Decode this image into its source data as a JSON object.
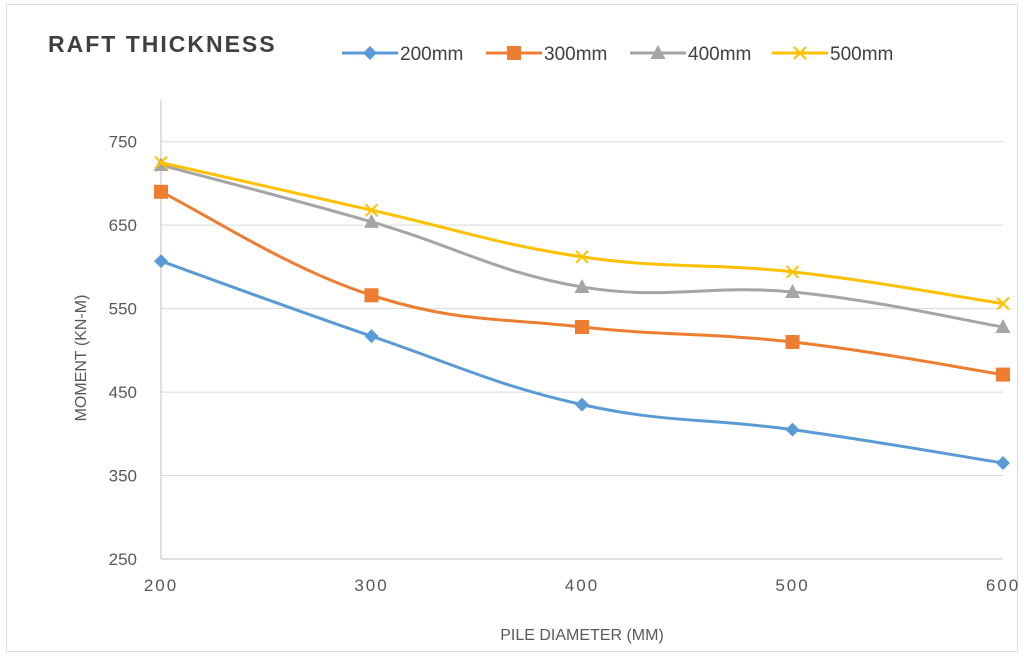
{
  "chart_data": {
    "type": "line",
    "title": "RAFT THICKNESS",
    "xlabel": "PILE DIAMETER (MM)",
    "ylabel": "MOMENT (KN-M)",
    "x": [
      200,
      300,
      400,
      500,
      600
    ],
    "ylim": [
      250,
      800
    ],
    "yticks": [
      250,
      350,
      450,
      550,
      650,
      750
    ],
    "grid": "horizontal",
    "legend_position": "top",
    "series": [
      {
        "name": "200mm",
        "color": "#5b9bd5",
        "marker": "diamond",
        "values": [
          607,
          517,
          435,
          405,
          365
        ]
      },
      {
        "name": "300mm",
        "color": "#ed7d31",
        "marker": "square",
        "values": [
          690,
          566,
          528,
          510,
          471
        ]
      },
      {
        "name": "400mm",
        "color": "#a5a5a5",
        "marker": "triangle",
        "values": [
          722,
          654,
          576,
          570,
          528
        ]
      },
      {
        "name": "500mm",
        "color": "#ffc000",
        "marker": "x",
        "values": [
          725,
          668,
          612,
          594,
          556
        ]
      }
    ]
  }
}
